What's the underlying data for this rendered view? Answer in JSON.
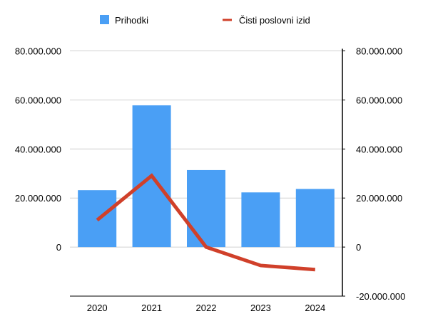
{
  "chart_data": {
    "type": "bar+line",
    "categories": [
      "2020",
      "2021",
      "2022",
      "2023",
      "2024"
    ],
    "series": [
      {
        "name": "Prihodki",
        "type": "bar",
        "axis": "left",
        "color": "#4a9ff5",
        "values": [
          23200000,
          57800000,
          31400000,
          22300000,
          23700000
        ]
      },
      {
        "name": "Čisti poslovni izid",
        "type": "line",
        "axis": "right",
        "color": "#d0402a",
        "values": [
          11000000,
          29100000,
          0,
          -7500000,
          -9200000
        ]
      }
    ],
    "left_axis": {
      "range": [
        -20000000,
        80000000
      ],
      "ticks": [
        0,
        20000000,
        40000000,
        60000000,
        80000000
      ],
      "tick_labels": [
        "0",
        "20.000.000",
        "40.000.000",
        "60.000.000",
        "80.000.000"
      ]
    },
    "right_axis": {
      "range": [
        -20000000,
        80000000
      ],
      "ticks": [
        -20000000,
        0,
        20000000,
        40000000,
        60000000,
        80000000
      ],
      "tick_labels": [
        "-20.000.000",
        "0",
        "20.000.000",
        "40.000.000",
        "60.000.000",
        "80.000.000"
      ]
    },
    "grid": true,
    "legend": "top"
  }
}
